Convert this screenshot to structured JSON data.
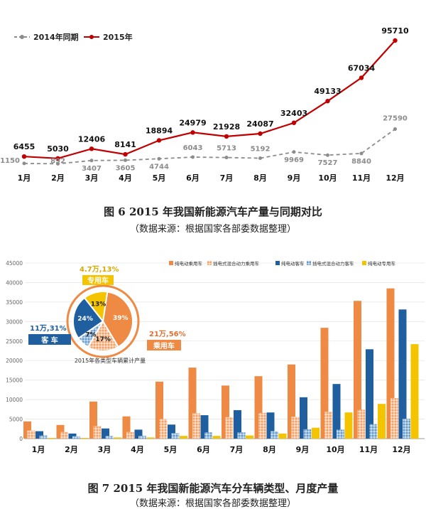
{
  "chart_data": [
    {
      "type": "line",
      "categories": [
        "1月",
        "2月",
        "3月",
        "4月",
        "5月",
        "6月",
        "7月",
        "8月",
        "9月",
        "10月",
        "11月",
        "12月"
      ],
      "series": [
        {
          "name": "2014年同期",
          "values": [
            1150,
            892,
            3407,
            3605,
            4744,
            6043,
            5713,
            5192,
            9969,
            7527,
            8840,
            27590
          ],
          "color": "#8c8c8c",
          "dashed": true
        },
        {
          "name": "2015年",
          "values": [
            6455,
            5030,
            12406,
            8141,
            18894,
            24979,
            21928,
            24087,
            32403,
            49133,
            67034,
            95710
          ],
          "color": "#c00000",
          "dashed": false
        }
      ],
      "legend_position": "top-left",
      "grid": false,
      "caption": {
        "title": "图 6   2015 年我国新能源汽车产量与同期对比",
        "source": "（数据来源：根据国家各部委数据整理）"
      }
    },
    {
      "type": "bar",
      "categories": [
        "1月",
        "2月",
        "3月",
        "4月",
        "5月",
        "6月",
        "7月",
        "8月",
        "9月",
        "10月",
        "11月",
        "12月"
      ],
      "ylim": [
        0,
        45000
      ],
      "yticks": [
        "0",
        "5000",
        "10000",
        "15000",
        "20000",
        "25000",
        "30000",
        "35000",
        "40000",
        "45000"
      ],
      "series": [
        {
          "name": "纯电动乘用车",
          "color": "#ef8a45",
          "values": [
            4400,
            3500,
            9500,
            5700,
            14600,
            18200,
            13600,
            16000,
            19000,
            28400,
            35300,
            38500
          ]
        },
        {
          "name": "插电式混合动力乘用车",
          "color": "#f7c49b",
          "pattern": true,
          "values": [
            2100,
            1700,
            3200,
            1700,
            5000,
            6500,
            5500,
            6600,
            5600,
            6900,
            7400,
            10400
          ]
        },
        {
          "name": "纯电动客车",
          "color": "#1f5fa0",
          "values": [
            1900,
            1300,
            2600,
            2300,
            3600,
            6000,
            7300,
            6700,
            10600,
            14000,
            22900,
            33100
          ]
        },
        {
          "name": "插电式混合动力客车",
          "color": "#9cc0e0",
          "pattern": true,
          "values": [
            800,
            600,
            700,
            700,
            1400,
            1600,
            1600,
            1900,
            2400,
            2300,
            3700,
            5100
          ]
        },
        {
          "name": "纯电动专用车",
          "color": "#f5c400",
          "values": [
            200,
            200,
            300,
            300,
            700,
            700,
            800,
            1300,
            2800,
            6700,
            8900,
            24200
          ]
        }
      ],
      "legend_position": "top-right",
      "inset_pie": {
        "title": "2015年各类型车辆累计产量",
        "slices": [
          {
            "label": "39%",
            "value": 39,
            "color": "#ef8a45"
          },
          {
            "label": "17%",
            "value": 17,
            "color": "#f7c49b",
            "pattern": true
          },
          {
            "label": "7%",
            "value": 7,
            "color": "#9cc0e0",
            "pattern": true
          },
          {
            "label": "24%",
            "value": 24,
            "color": "#1f5fa0"
          },
          {
            "label": "13%",
            "value": 13,
            "color": "#f5c400"
          }
        ],
        "callouts": {
          "special": {
            "value": "4.7万,13%",
            "label": "专用车"
          },
          "passenger": {
            "value": "21万,56%",
            "label": "乘用车"
          },
          "bus": {
            "value": "11万,31%",
            "label": "客 车"
          }
        }
      },
      "caption": {
        "title": "图 7   2015 年我国新能源汽车分车辆类型、月度产量",
        "source": "（数据来源：根据国家各部委数据整理）"
      }
    }
  ]
}
